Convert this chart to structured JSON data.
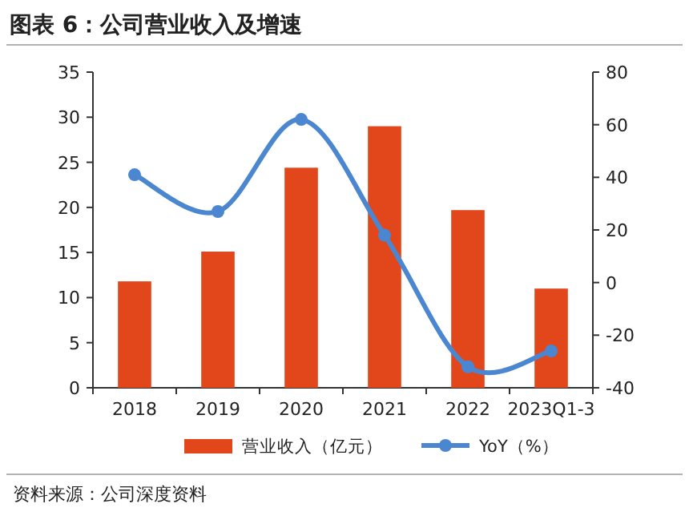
{
  "chart_data": {
    "type": "bar",
    "title": "图表 6：公司营业收入及增速",
    "categories": [
      "2018",
      "2019",
      "2020",
      "2021",
      "2022",
      "2023Q1-3"
    ],
    "series": [
      {
        "name": "营业收入（亿元）",
        "color": "#e2461b",
        "values": [
          11.8,
          15.1,
          24.4,
          29.0,
          19.7,
          11.0
        ]
      },
      {
        "name": "YoY（%）",
        "type": "line",
        "axis": "y2",
        "color": "#4b86d0",
        "marker": "circle",
        "values": [
          41,
          27,
          62,
          18,
          -32,
          -26
        ]
      }
    ],
    "ylim": [
      0,
      35
    ],
    "yticks": [
      0,
      5,
      10,
      15,
      20,
      25,
      30,
      35
    ],
    "y2lim": [
      -40,
      80
    ],
    "y2ticks": [
      -40,
      -20,
      0,
      20,
      40,
      60,
      80
    ],
    "legend": "bottom",
    "annotations": [
      "资料来源：公司深度资料"
    ]
  }
}
